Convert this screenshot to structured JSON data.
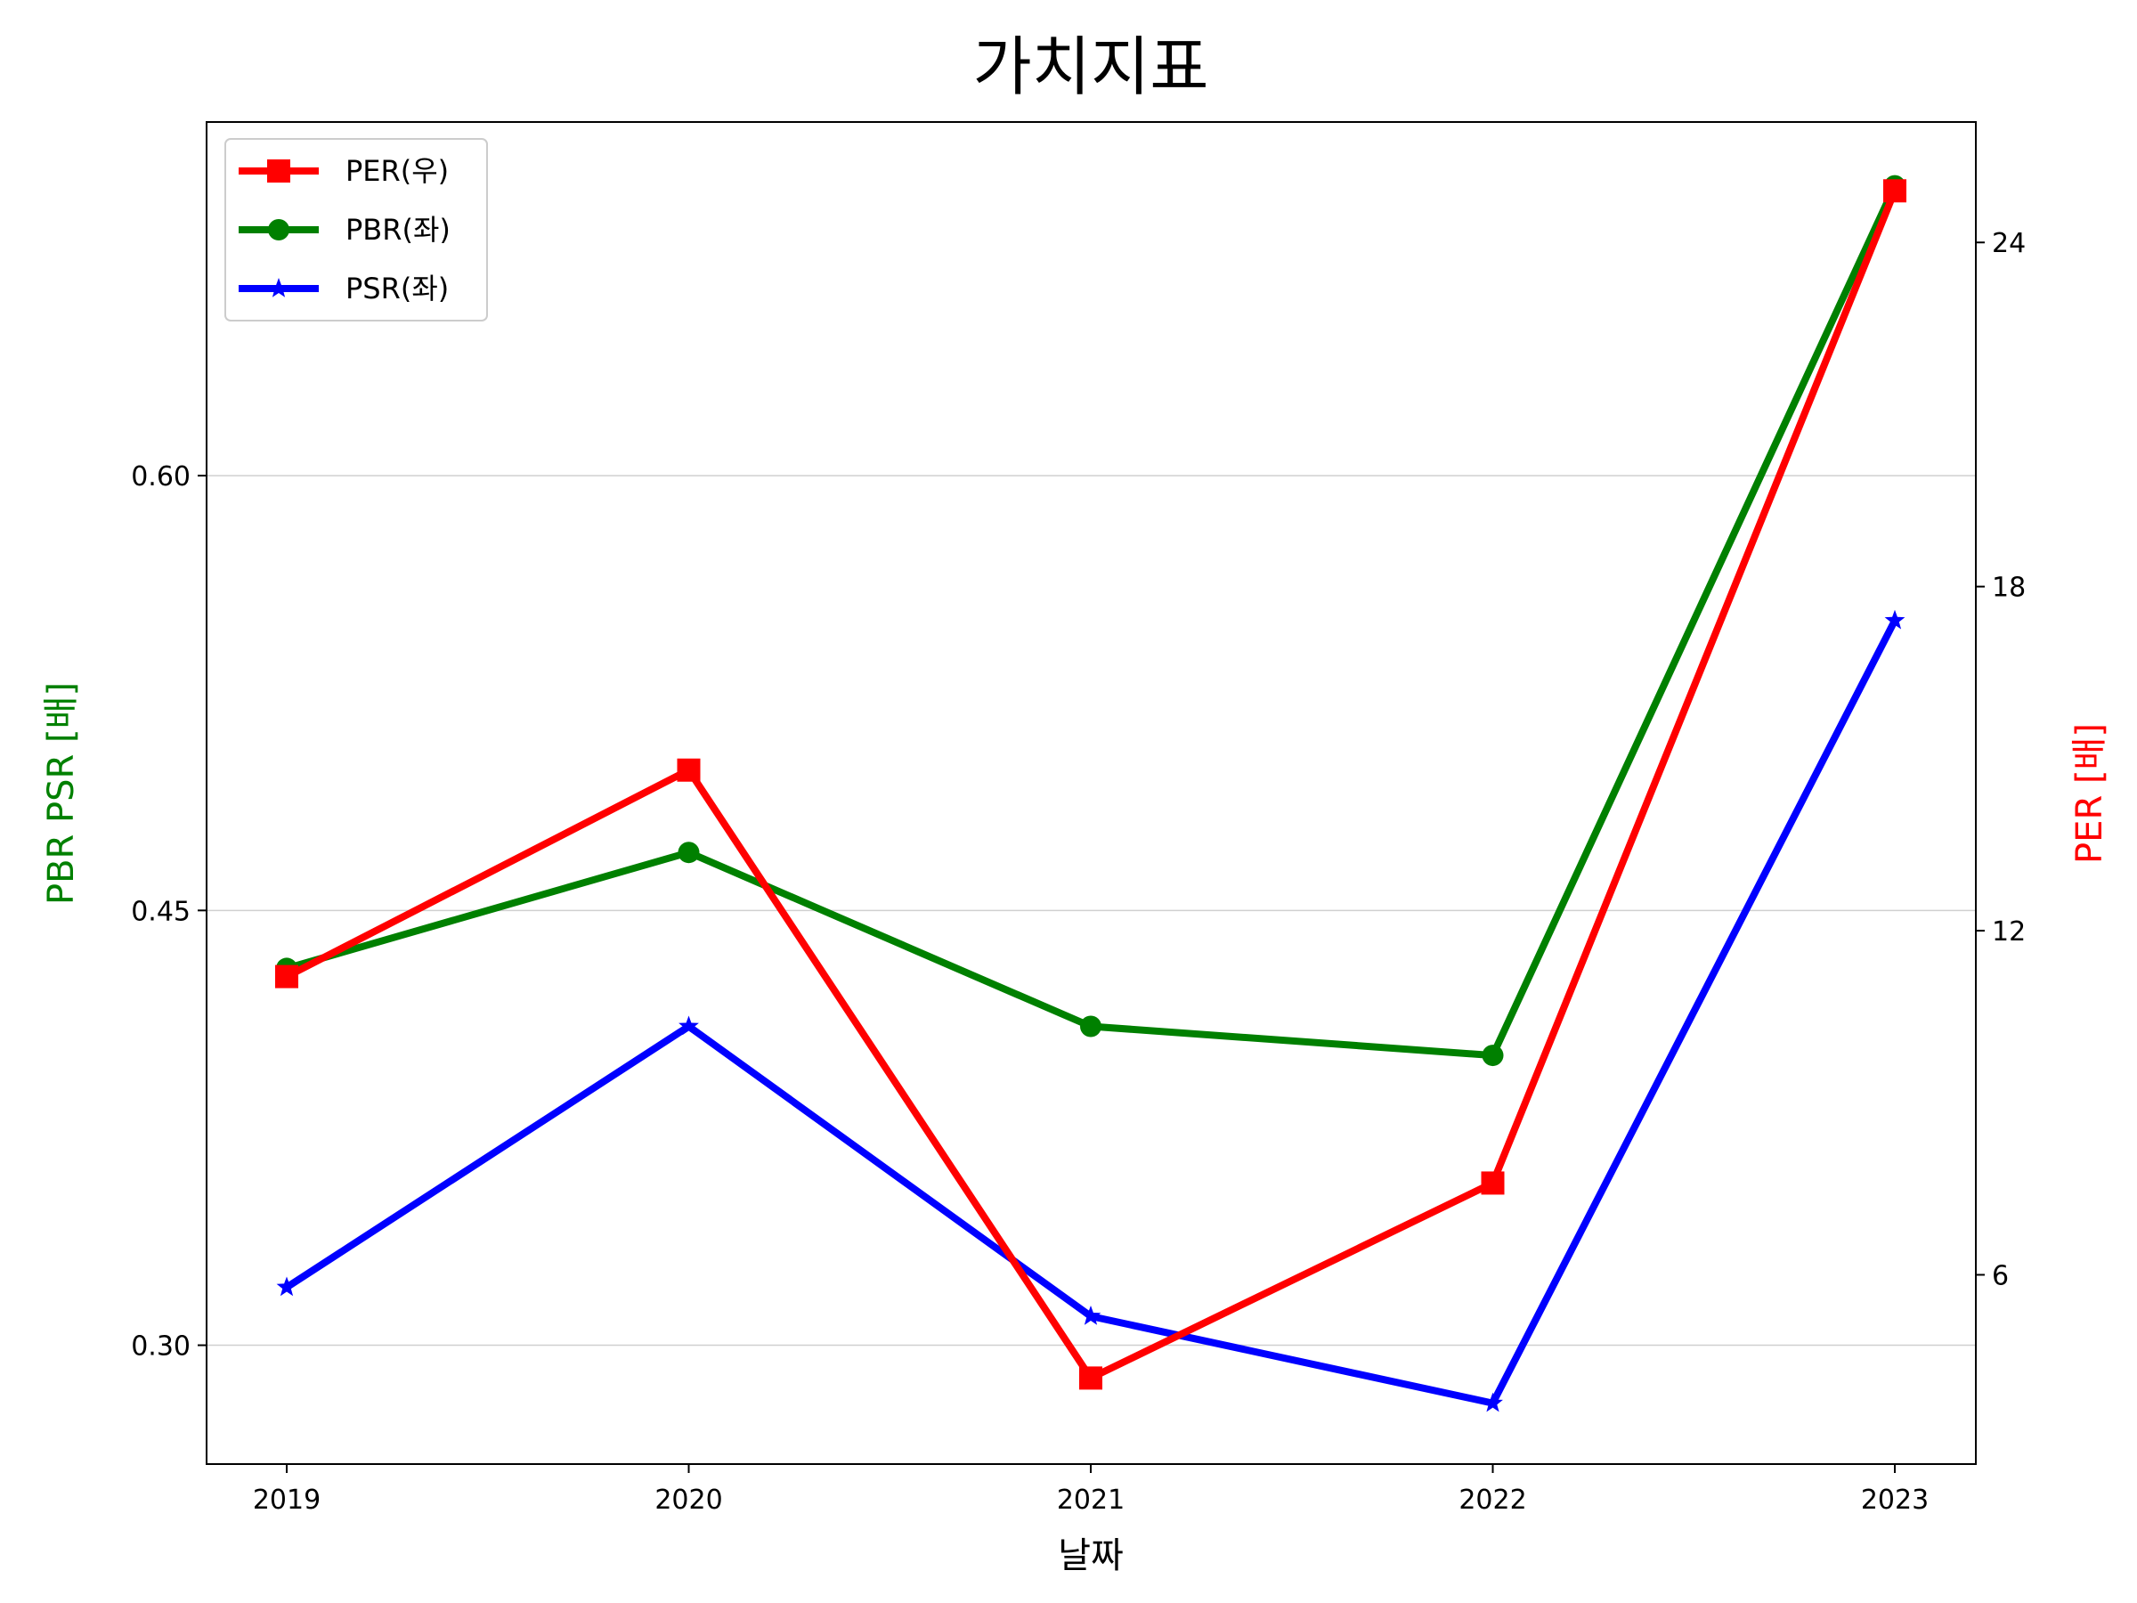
{
  "chart_data": {
    "type": "line",
    "title": "가치지표",
    "xlabel": "날짜",
    "ylabel_left": "PBR PSR [배]",
    "ylabel_right": "PER [배]",
    "categories": [
      "2019",
      "2020",
      "2021",
      "2022",
      "2023"
    ],
    "left_axis": {
      "ylim": [
        0.259,
        0.722
      ],
      "ticks": [
        0.3,
        0.45,
        0.6
      ],
      "tick_labels": [
        "0.30",
        "0.45",
        "0.60"
      ],
      "grid": true
    },
    "right_axis": {
      "ylim": [
        2.7,
        26.1
      ],
      "ticks": [
        6,
        12,
        18,
        24
      ],
      "tick_labels": [
        "6",
        "12",
        "18",
        "24"
      ]
    },
    "series": [
      {
        "name": "PER(우)",
        "axis": "right",
        "color": "#ff0000",
        "marker": "square",
        "values": [
          11.2,
          14.8,
          4.2,
          7.6,
          24.9
        ]
      },
      {
        "name": "PBR(좌)",
        "axis": "left",
        "color": "#008000",
        "marker": "circle",
        "values": [
          0.43,
          0.47,
          0.41,
          0.4,
          0.7
        ]
      },
      {
        "name": "PSR(좌)",
        "axis": "left",
        "color": "#0000ff",
        "marker": "star",
        "values": [
          0.32,
          0.41,
          0.31,
          0.28,
          0.55
        ]
      }
    ],
    "legend_position": "top-left",
    "left_label_color": "#008000",
    "right_label_color": "#ff0000"
  }
}
